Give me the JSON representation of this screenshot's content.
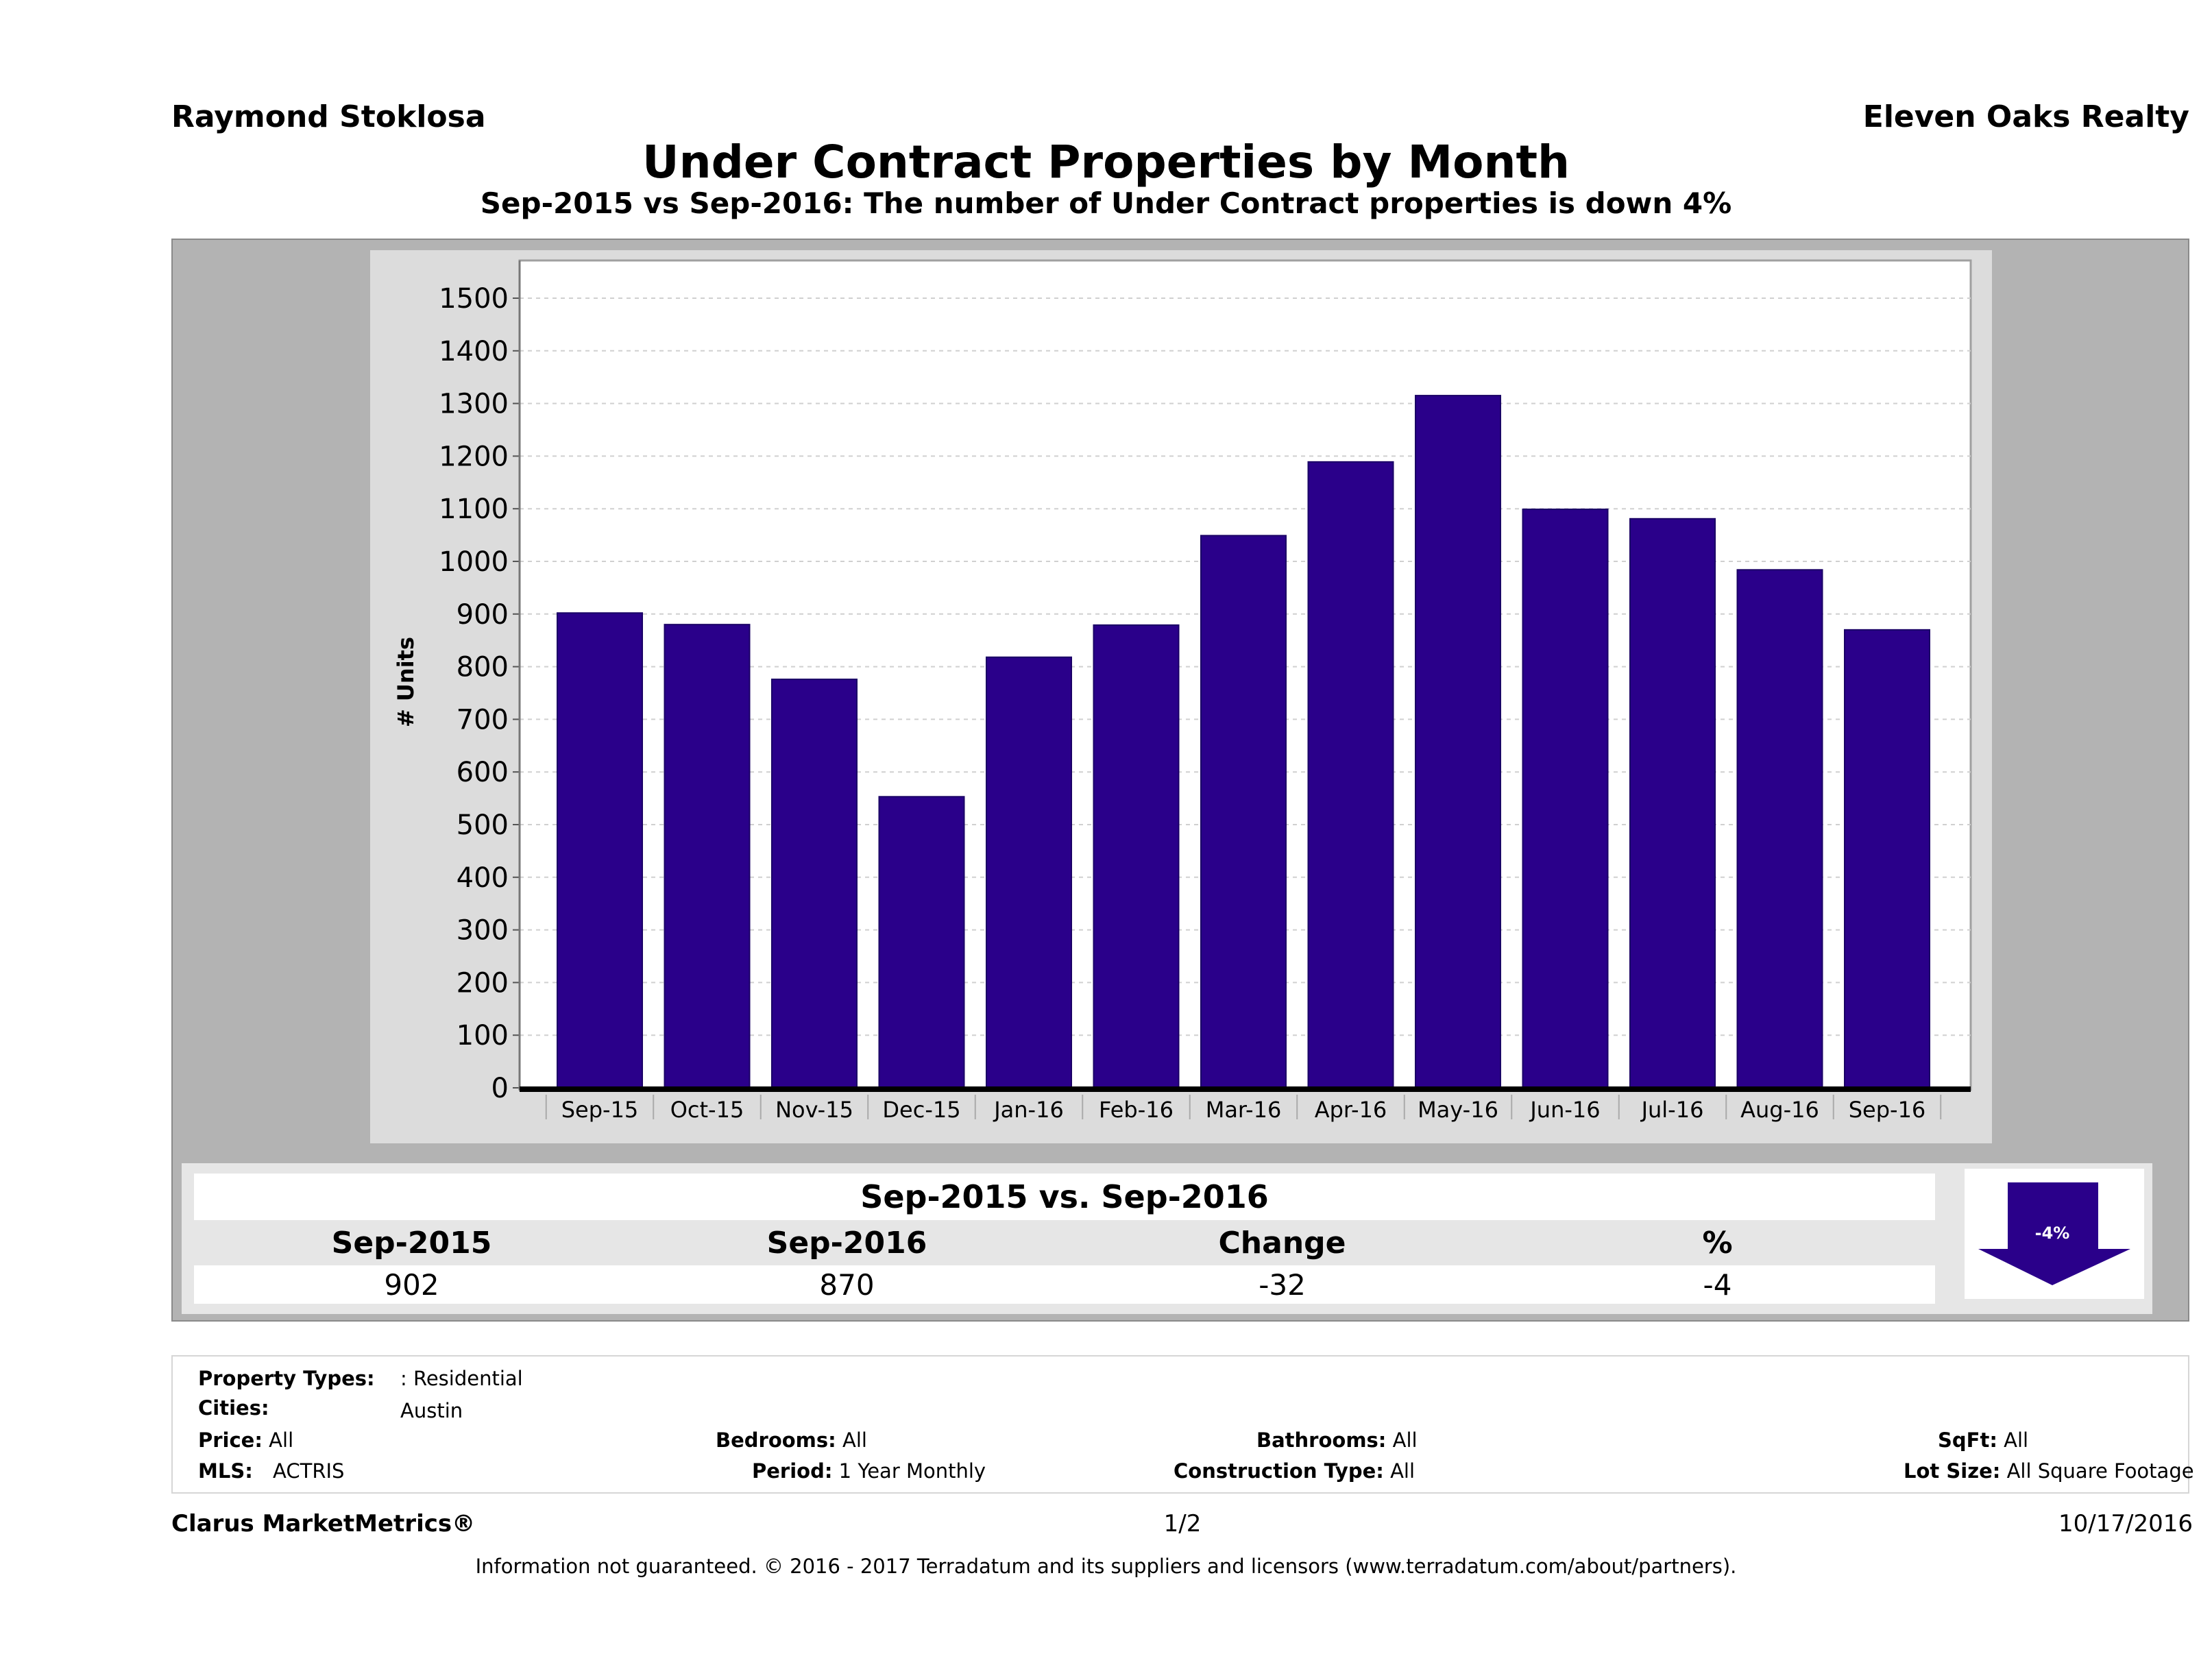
{
  "header": {
    "agent_name": "Raymond Stoklosa",
    "brokerage": "Eleven Oaks Realty",
    "title": "Under Contract Properties by Month",
    "subtitle": "Sep-2015 vs Sep-2016: The number of Under Contract   properties is down 4%"
  },
  "chart_data": {
    "type": "bar",
    "title": "Under Contract Properties by Month",
    "xlabel": "",
    "ylabel": "# Units",
    "ylim": [
      0,
      1500
    ],
    "yticks": [
      0,
      100,
      200,
      300,
      400,
      500,
      600,
      700,
      800,
      900,
      1000,
      1100,
      1200,
      1300,
      1400,
      1500
    ],
    "grid": true,
    "legend": "none",
    "bar_color": "#2a008a",
    "categories": [
      "Sep-15",
      "Oct-15",
      "Nov-15",
      "Dec-15",
      "Jan-16",
      "Feb-16",
      "Mar-16",
      "Apr-16",
      "May-16",
      "Jun-16",
      "Jul-16",
      "Aug-16",
      "Sep-16"
    ],
    "values": [
      902,
      880,
      776,
      553,
      818,
      879,
      1049,
      1189,
      1315,
      1099,
      1081,
      984,
      870
    ]
  },
  "comparison": {
    "title": "Sep-2015 vs. Sep-2016",
    "headers": [
      "Sep-2015",
      "Sep-2016",
      "Change",
      "%"
    ],
    "values": [
      "902",
      "870",
      "-32",
      "-4"
    ],
    "badge_label": "-4%",
    "badge_direction": "down",
    "badge_color": "#2a008a"
  },
  "filters": {
    "property_types": {
      "label": "Property Types:",
      "value": ": Residential"
    },
    "cities": {
      "label": "Cities:",
      "value": "Austin"
    },
    "price": {
      "label": "Price:",
      "value": "All"
    },
    "bedrooms": {
      "label": "Bedrooms:",
      "value": "All"
    },
    "bathrooms": {
      "label": "Bathrooms:",
      "value": "All"
    },
    "sqft": {
      "label": "SqFt:",
      "value": "All"
    },
    "mls": {
      "label": "MLS:",
      "value": "ACTRIS"
    },
    "period": {
      "label": "Period:",
      "value": "1 Year Monthly"
    },
    "construction_type": {
      "label": "Construction Type:",
      "value": "All"
    },
    "lot_size": {
      "label": "Lot Size:",
      "value": "All Square Footage"
    }
  },
  "footer": {
    "product": "Clarus MarketMetrics®",
    "page": "1/2",
    "date": "10/17/2016",
    "disclaimer": "Information not guaranteed. © 2016 - 2017 Terradatum and its suppliers and licensors (www.terradatum.com/about/partners)."
  }
}
